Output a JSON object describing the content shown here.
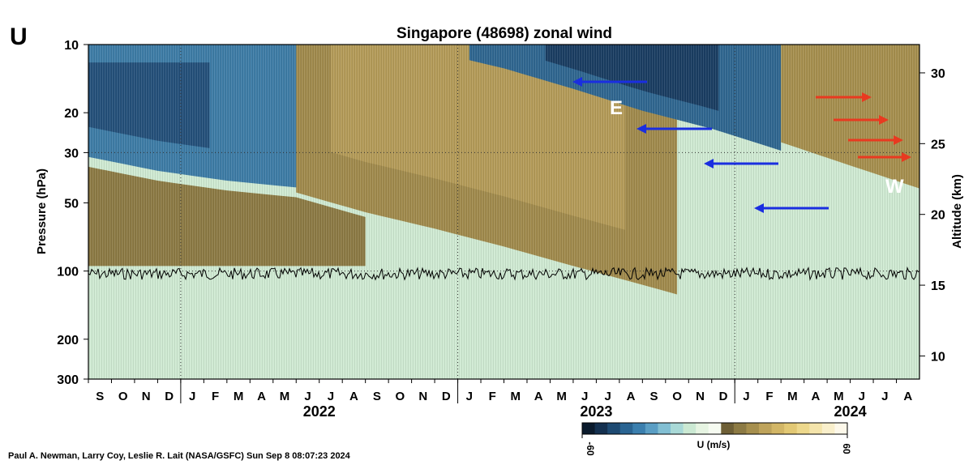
{
  "panel_letter": "U",
  "credit": "Paul A. Newman, Larry Coy, Leslie R. Lait (NASA/GSFC) Sun Sep  8 08:07:23 2024",
  "chart_data": {
    "type": "heatmap",
    "title": "Singapore (48698) zonal wind",
    "ylabel": "Pressure (hPa)",
    "y2label": "Altitude (km)",
    "y_scale": "log",
    "ylim": [
      300,
      10
    ],
    "yticks": [
      "10",
      "20",
      "30",
      "50",
      "100",
      "200",
      "300"
    ],
    "y2ticks": [
      "30",
      "25",
      "20",
      "15",
      "10"
    ],
    "month_labels": [
      "S",
      "O",
      "N",
      "D",
      "J",
      "F",
      "M",
      "A",
      "M",
      "J",
      "J",
      "A",
      "S",
      "O",
      "N",
      "D",
      "J",
      "F",
      "M",
      "A",
      "M",
      "J",
      "J",
      "A",
      "S",
      "O",
      "N",
      "D",
      "J",
      "F",
      "M",
      "A",
      "M",
      "J",
      "J",
      "A"
    ],
    "year_labels": [
      "2022",
      "2023",
      "2024"
    ],
    "colorbar": {
      "label": "U (m/s)",
      "min_label": "-60",
      "max_label": "60",
      "colors": [
        "#0a1a2c",
        "#14304f",
        "#1e4a72",
        "#2a6492",
        "#3b7fae",
        "#5a9ec4",
        "#82bfd3",
        "#a9d9d7",
        "#cbe9d3",
        "#e6f4e2",
        "#f6fbf1",
        "#6e5f36",
        "#8c7a44",
        "#a68f4e",
        "#bea35b",
        "#d2b666",
        "#e2c874",
        "#edd88c",
        "#f4e4ab",
        "#f9efcb",
        "#fdf8ea"
      ]
    },
    "annotations": [
      "E",
      "W"
    ],
    "arrows": [
      {
        "dir": "easterly",
        "color": "#1a2ee0"
      },
      {
        "dir": "westerly",
        "color": "#e83a20"
      }
    ],
    "tropopause_pressure_hPa": 103,
    "regimes": [
      {
        "t": 0.0,
        "e_bot": 33,
        "w_bot": 100
      },
      {
        "t": 1.0,
        "e_bot": 38,
        "w_bot": 100
      },
      {
        "t": 2.0,
        "e_bot": 42,
        "w_bot": 100
      },
      {
        "t": 3.0,
        "e_bot": 45,
        "w_bot": 100
      },
      {
        "t": 4.0,
        "e_top": 10,
        "e_bot": 55,
        "w_top": 10
      },
      {
        "t": 5.0,
        "e_top": 11,
        "e_bot": 65,
        "w_top": 10
      },
      {
        "t": 6.0,
        "e_top": 13,
        "e_bot": 78
      },
      {
        "t": 7.0,
        "e_top": 16,
        "e_bot": 95
      },
      {
        "t": 8.0,
        "e_top": 20,
        "e_bot": 115
      },
      {
        "t": 9.0,
        "e_top": 24,
        "e_bot": 140
      },
      {
        "t": 10.0,
        "e_top": 30,
        "e_bot": 170
      },
      {
        "t": 11.0,
        "e_top": 38,
        "e_bot": 220
      },
      {
        "t": 12.0,
        "e_top": 48,
        "e_bot": 300
      }
    ]
  }
}
